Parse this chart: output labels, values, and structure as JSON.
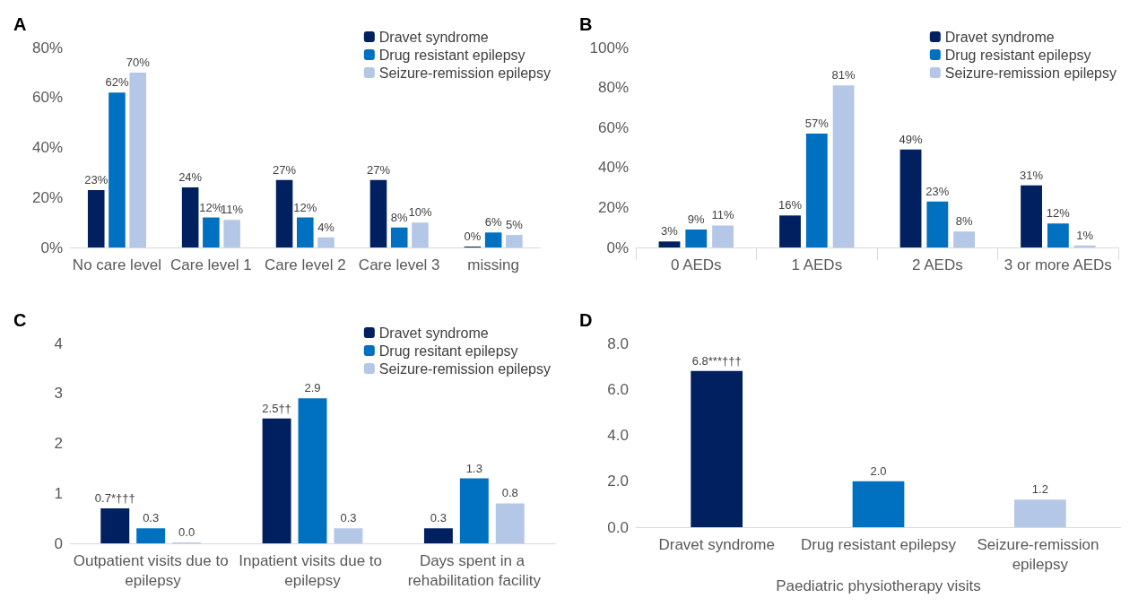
{
  "chart_data": [
    {
      "type": "bar",
      "title": "A",
      "categories": [
        "No care level",
        "Care level 1",
        "Care level 2",
        "Care level 3",
        "missing"
      ],
      "ylim": [
        0,
        80
      ],
      "yticks": [
        {
          "value": 0,
          "label": "0%"
        },
        {
          "value": 20,
          "label": "20%"
        },
        {
          "value": 40,
          "label": "40%"
        },
        {
          "value": 60,
          "label": "60%"
        },
        {
          "value": 80,
          "label": "80%"
        }
      ],
      "legend": "top right",
      "grid": false,
      "series": [
        {
          "name": "Dravet syndrome",
          "color": "#002060",
          "values": [
            23,
            24,
            27,
            27,
            0
          ],
          "value_labels": [
            "23%",
            "24%",
            "27%",
            "27%",
            "0%"
          ]
        },
        {
          "name": "Drug resistant epilepsy",
          "color": "#0070c0",
          "values": [
            62,
            12,
            12,
            8,
            6
          ],
          "value_labels": [
            "62%",
            "12%",
            "12%",
            "8%",
            "6%"
          ]
        },
        {
          "name": "Seizure-remission epilepsy",
          "color": "#b4c7e7",
          "values": [
            70,
            11,
            4,
            10,
            5
          ],
          "value_labels": [
            "70%",
            "11%",
            "4%",
            "10%",
            "5%"
          ]
        }
      ]
    },
    {
      "type": "bar",
      "title": "B",
      "categories": [
        "0 AEDs",
        "1 AEDs",
        "2 AEDs",
        "3 or more AEDs"
      ],
      "ylim": [
        0,
        100
      ],
      "yticks": [
        {
          "value": 0,
          "label": "0%"
        },
        {
          "value": 20,
          "label": "20%"
        },
        {
          "value": 40,
          "label": "40%"
        },
        {
          "value": 60,
          "label": "60%"
        },
        {
          "value": 80,
          "label": "80%"
        },
        {
          "value": 100,
          "label": "100%"
        }
      ],
      "legend": "top right",
      "grid": false,
      "series": [
        {
          "name": "Dravet syndrome",
          "color": "#002060",
          "values": [
            3,
            16,
            49,
            31
          ],
          "value_labels": [
            "3%",
            "16%",
            "49%",
            "31%"
          ]
        },
        {
          "name": "Drug resistant epilepsy",
          "color": "#0070c0",
          "values": [
            9,
            57,
            23,
            12
          ],
          "value_labels": [
            "9%",
            "57%",
            "23%",
            "12%"
          ]
        },
        {
          "name": "Seizure-remission epilepsy",
          "color": "#b4c7e7",
          "values": [
            11,
            81,
            8,
            1
          ],
          "value_labels": [
            "11%",
            "81%",
            "8%",
            "1%"
          ]
        }
      ]
    },
    {
      "type": "bar",
      "title": "C",
      "categories": [
        "Outpatient visits due to epilepsy",
        "Inpatient visits due to epilepsy",
        "Days spent in a rehabilitation facility"
      ],
      "ylim": [
        0,
        4
      ],
      "yticks": [
        0,
        1,
        2,
        3,
        4
      ],
      "legend": "top right",
      "grid": false,
      "series": [
        {
          "name": "Dravet syndrome",
          "color": "#002060",
          "values": [
            0.7,
            2.5,
            0.3
          ],
          "value_labels": [
            "0.7*†††",
            "2.5††",
            "0.3"
          ]
        },
        {
          "name": "Drug resitant epilepsy",
          "color": "#0070c0",
          "values": [
            0.3,
            2.9,
            1.3
          ],
          "value_labels": [
            "0.3",
            "2.9",
            "1.3"
          ]
        },
        {
          "name": "Seizure-remission epilepsy",
          "color": "#b4c7e7",
          "values": [
            0.0,
            0.3,
            0.8
          ],
          "value_labels": [
            "0.0",
            "0.3",
            "0.8"
          ]
        }
      ]
    },
    {
      "type": "bar",
      "title": "D",
      "xlabel": "Paediatric physiotherapy visits",
      "categories": [
        "Dravet syndrome",
        "Drug resistant epilepsy",
        "Seizure-remission epilepsy"
      ],
      "ylim": [
        0,
        8
      ],
      "yticks": [
        {
          "value": 0,
          "label": "0.0"
        },
        {
          "value": 2,
          "label": "2.0"
        },
        {
          "value": 4,
          "label": "4.0"
        },
        {
          "value": 6,
          "label": "6.0"
        },
        {
          "value": 8,
          "label": "8.0"
        }
      ],
      "grid": false,
      "series": [
        {
          "colors": [
            "#002060",
            "#0070c0",
            "#b4c7e7"
          ],
          "values": [
            6.8,
            2.0,
            1.2
          ],
          "value_labels": [
            "6.8***†††",
            "2.0",
            "1.2"
          ]
        }
      ]
    }
  ]
}
